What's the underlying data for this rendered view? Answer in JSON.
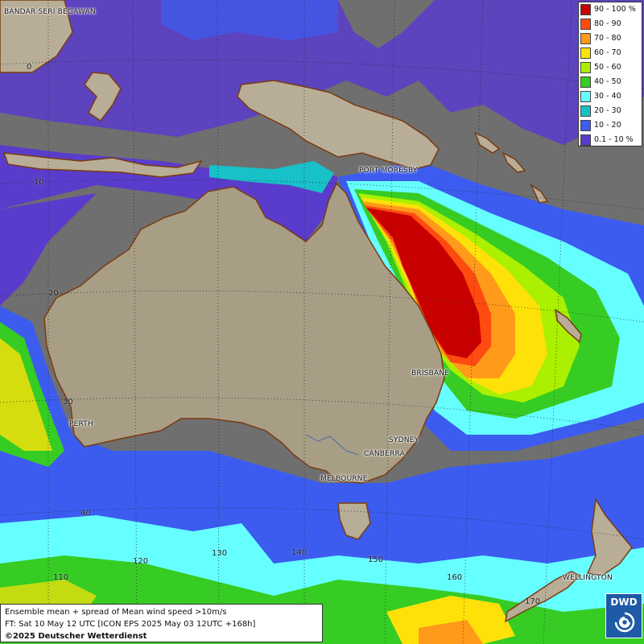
{
  "legend": {
    "items": [
      {
        "label": "90 - 100 %",
        "color": "#c80000"
      },
      {
        "label": "80 - 90",
        "color": "#ff4a10"
      },
      {
        "label": "70 - 80",
        "color": "#ff9a1a"
      },
      {
        "label": "60 - 70",
        "color": "#ffe10a"
      },
      {
        "label": "50 - 60",
        "color": "#aaf000"
      },
      {
        "label": "40 - 50",
        "color": "#36cc24"
      },
      {
        "label": "30 - 40",
        "color": "#66ffff"
      },
      {
        "label": "20 - 30",
        "color": "#18c0c8"
      },
      {
        "label": "10 - 20",
        "color": "#3c5cf0"
      },
      {
        "label": "0.1 - 10 %",
        "color": "#5a3ccc"
      }
    ]
  },
  "cities": [
    {
      "id": "bandar",
      "name": "BANDAR SERI BEGAWAN"
    },
    {
      "id": "port-moresby",
      "name": "PORT MORESBY"
    },
    {
      "id": "brisbane",
      "name": "BRISBANE"
    },
    {
      "id": "perth",
      "name": "PERTH"
    },
    {
      "id": "sydney",
      "name": "SYDNEY"
    },
    {
      "id": "canberra",
      "name": "CANBERRA"
    },
    {
      "id": "melbourne",
      "name": "MELBOURNE"
    },
    {
      "id": "wellington",
      "name": "WELLINGTON"
    }
  ],
  "grid_labels": {
    "lat": [
      "0",
      "10",
      "20",
      "30",
      "40"
    ],
    "lon": [
      "110",
      "120",
      "130",
      "140",
      "150",
      "160",
      "170"
    ]
  },
  "info": {
    "line1": "Ensemble mean + spread of Mean wind speed >10m/s",
    "line2": "FT: Sat 10 May 12 UTC [ICON EPS 2025 May 03 12UTC +168h]",
    "line3": "©2025 Deutscher Wetterdienst"
  },
  "logo": {
    "text": "DWD"
  }
}
